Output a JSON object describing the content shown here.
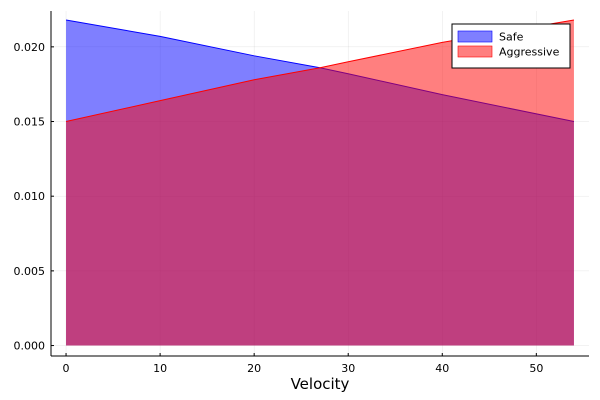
{
  "chart_data": {
    "type": "area",
    "title": "",
    "xlabel": "Velocity",
    "ylabel": "",
    "xlim": [
      -1.6,
      55.6
    ],
    "ylim": [
      -0.0007,
      0.0224
    ],
    "xticks": [
      0,
      10,
      20,
      30,
      40,
      50
    ],
    "xtick_labels": [
      "0",
      "10",
      "20",
      "30",
      "40",
      "50"
    ],
    "yticks": [
      0.0,
      0.005,
      0.01,
      0.015,
      0.02
    ],
    "ytick_labels": [
      "0.000",
      "0.005",
      "0.010",
      "0.015",
      "0.020"
    ],
    "grid": true,
    "legend_position": "top-right",
    "series": [
      {
        "name": "Safe",
        "color": "#0000ff",
        "x": [
          0,
          10,
          20,
          27,
          30,
          40,
          54
        ],
        "y": [
          0.0218,
          0.0207,
          0.0194,
          0.0186,
          0.0182,
          0.0168,
          0.015
        ]
      },
      {
        "name": "Aggressive",
        "color": "#ff0000",
        "x": [
          0,
          10,
          20,
          27,
          30,
          40,
          54
        ],
        "y": [
          0.015,
          0.0164,
          0.0178,
          0.0186,
          0.019,
          0.0203,
          0.0218
        ]
      }
    ]
  }
}
